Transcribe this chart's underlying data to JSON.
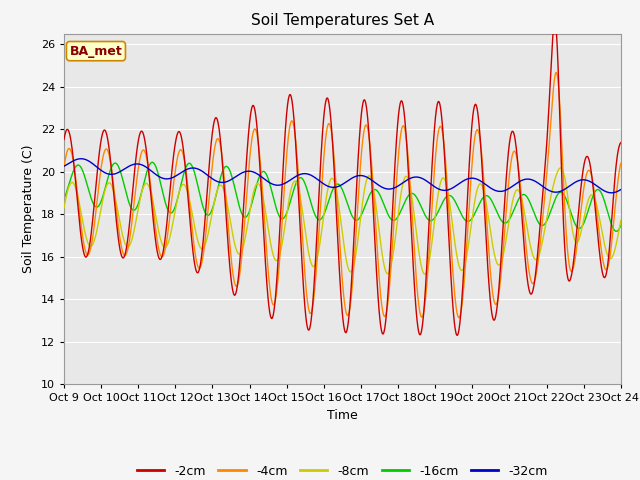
{
  "title": "Soil Temperatures Set A",
  "xlabel": "Time",
  "ylabel": "Soil Temperature (C)",
  "annotation": "BA_met",
  "ylim": [
    10,
    26.5
  ],
  "colors": {
    "-2cm": "#cc0000",
    "-4cm": "#ff8800",
    "-8cm": "#cccc00",
    "-16cm": "#00cc00",
    "-32cm": "#0000cc"
  },
  "bg_color": "#e8e8e8",
  "grid_color": "#ffffff",
  "title_fontsize": 11,
  "label_fontsize": 9,
  "tick_fontsize": 8,
  "legend_fontsize": 9,
  "fig_width": 6.4,
  "fig_height": 4.8,
  "dpi": 100
}
